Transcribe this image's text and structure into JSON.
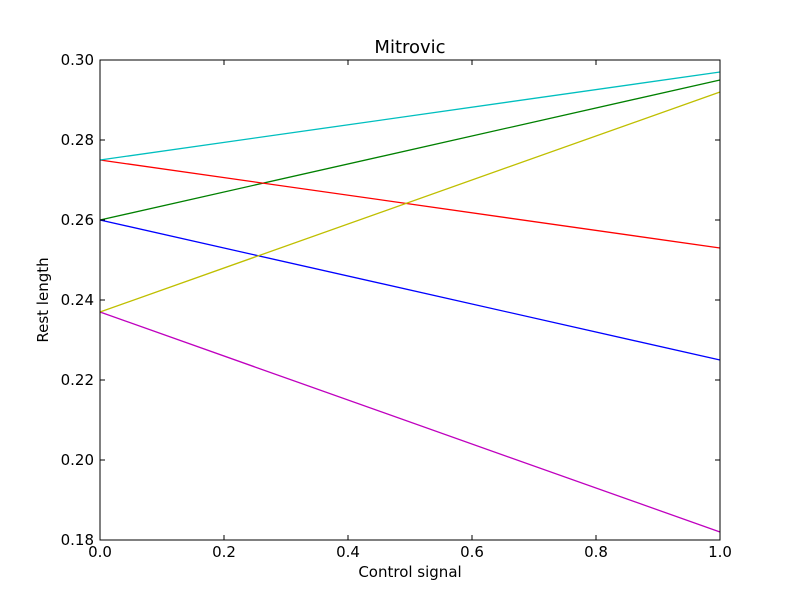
{
  "chart_data": {
    "type": "line",
    "title": "Mitrovic",
    "xlabel": "Control signal",
    "ylabel": "Rest length",
    "xlim": [
      0.0,
      1.0
    ],
    "ylim": [
      0.18,
      0.3
    ],
    "xticks": [
      "0.0",
      "0.2",
      "0.4",
      "0.6",
      "0.8",
      "1.0"
    ],
    "yticks": [
      "0.18",
      "0.20",
      "0.22",
      "0.24",
      "0.26",
      "0.28",
      "0.30"
    ],
    "grid": false,
    "series": [
      {
        "color": "#0000ff",
        "x": [
          0.0,
          1.0
        ],
        "y": [
          0.26,
          0.225
        ]
      },
      {
        "color": "#008000",
        "x": [
          0.0,
          1.0
        ],
        "y": [
          0.26,
          0.295
        ]
      },
      {
        "color": "#ff0000",
        "x": [
          0.0,
          1.0
        ],
        "y": [
          0.275,
          0.253
        ]
      },
      {
        "color": "#00bfbf",
        "x": [
          0.0,
          1.0
        ],
        "y": [
          0.275,
          0.297
        ]
      },
      {
        "color": "#bf00bf",
        "x": [
          0.0,
          1.0
        ],
        "y": [
          0.237,
          0.182
        ]
      },
      {
        "color": "#bfbf00",
        "x": [
          0.0,
          1.0
        ],
        "y": [
          0.237,
          0.292
        ]
      }
    ]
  }
}
